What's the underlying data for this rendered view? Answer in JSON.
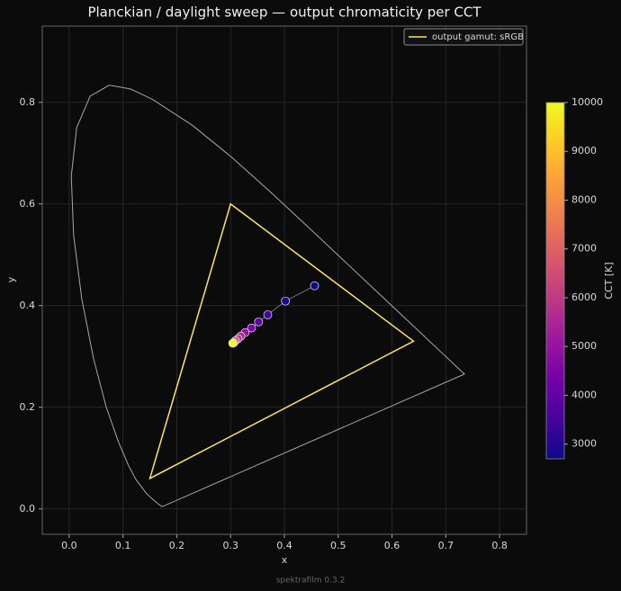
{
  "chart_data": {
    "type": "scatter",
    "title": "Planckian / daylight sweep — output chromaticity per CCT",
    "x_label": "x",
    "y_label": "y",
    "footer": "spektrafilm 0.3.2",
    "xlim": [
      -0.05,
      0.85
    ],
    "ylim": [
      -0.05,
      0.95
    ],
    "xticks": [
      {
        "value": 0,
        "label": "0.0"
      },
      0.1,
      0.2,
      0.3,
      0.4,
      0.5,
      0.6,
      0.7,
      0.8
    ],
    "yticks": [
      {
        "value": 0,
        "label": "0.0"
      },
      0.2,
      0.4,
      0.6,
      0.8
    ],
    "grid": true,
    "legend_position": "upper-right",
    "locus": {
      "color": "#a8a8a8",
      "closed": true,
      "x": [
        0.1741,
        0.1714,
        0.1644,
        0.1566,
        0.144,
        0.1241,
        0.1096,
        0.0913,
        0.0687,
        0.0454,
        0.0235,
        0.0082,
        0.0039,
        0.0139,
        0.0389,
        0.0743,
        0.1142,
        0.1547,
        0.2296,
        0.3016,
        0.3731,
        0.4441,
        0.5125,
        0.5752,
        0.627,
        0.6915,
        0.719,
        0.7347
      ],
      "y": [
        0.005,
        0.0051,
        0.0109,
        0.0177,
        0.0297,
        0.0578,
        0.0868,
        0.1327,
        0.2007,
        0.295,
        0.4127,
        0.5384,
        0.6548,
        0.7502,
        0.812,
        0.8338,
        0.8262,
        0.8059,
        0.7543,
        0.6923,
        0.6245,
        0.5547,
        0.4866,
        0.4242,
        0.3725,
        0.3083,
        0.2809,
        0.2653
      ]
    },
    "gamut": {
      "name": "output gamut: sRGB",
      "color": "#ffe55c",
      "closed": true,
      "x": [
        0.64,
        0.3,
        0.15
      ],
      "y": [
        0.33,
        0.6,
        0.06
      ]
    },
    "points": {
      "line_color": "#8a8aa0",
      "x": [
        0.456,
        0.402,
        0.369,
        0.352,
        0.339,
        0.327,
        0.319,
        0.314,
        0.309,
        0.306,
        0.304
      ],
      "y": [
        0.439,
        0.409,
        0.382,
        0.368,
        0.356,
        0.347,
        0.34,
        0.335,
        0.331,
        0.327,
        0.326
      ],
      "cct": [
        2700,
        3000,
        3500,
        4000,
        4500,
        5000,
        5500,
        6000,
        6500,
        7500,
        10000
      ]
    },
    "colorbar": {
      "label": "CCT [K]",
      "clim": [
        2700,
        10000
      ],
      "ticks": [
        3000,
        4000,
        5000,
        6000,
        7000,
        8000,
        9000,
        10000
      ],
      "colormap": [
        "#0d0887",
        "#46039f",
        "#7201a8",
        "#9c179e",
        "#bd3786",
        "#d8576b",
        "#ed7953",
        "#fb9f3a",
        "#fdca26",
        "#f0f921"
      ]
    }
  }
}
